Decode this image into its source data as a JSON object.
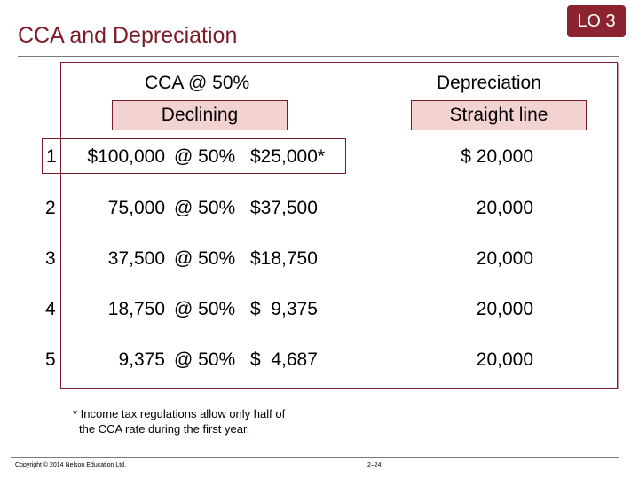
{
  "header": {
    "title": "CCA and Depreciation",
    "lo_badge": "LO 3"
  },
  "columns": {
    "cca": {
      "heading": "CCA @ 50%",
      "method": "Declining"
    },
    "depreciation": {
      "heading": "Depreciation",
      "method": "Straight line"
    }
  },
  "rows": [
    {
      "year": "1",
      "balance": "$100,000",
      "rate": "@ 50%",
      "cca": "$25,000*",
      "depreciation": "$ 20,000"
    },
    {
      "year": "2",
      "balance": "75,000",
      "rate": "@ 50%",
      "cca": "$37,500",
      "depreciation": "20,000"
    },
    {
      "year": "3",
      "balance": "37,500",
      "rate": "@ 50%",
      "cca": "$18,750",
      "depreciation": "20,000"
    },
    {
      "year": "4",
      "balance": "18,750",
      "rate": "@ 50%",
      "cca": "$  9,375",
      "depreciation": "20,000"
    },
    {
      "year": "5",
      "balance": "9,375",
      "rate": "@ 50%",
      "cca": "$  4,687",
      "depreciation": "20,000"
    }
  ],
  "footnote": {
    "line1": "* Income tax regulations allow only half of",
    "line2": "the CCA rate during the first year."
  },
  "footer": {
    "copyright": "Copyright © 2014 Nelson Education Ltd.",
    "page": "2–24"
  },
  "colors": {
    "accent": "#7b1d28",
    "badge": "#8c2430",
    "pill_fill": "#f3d2d2"
  }
}
